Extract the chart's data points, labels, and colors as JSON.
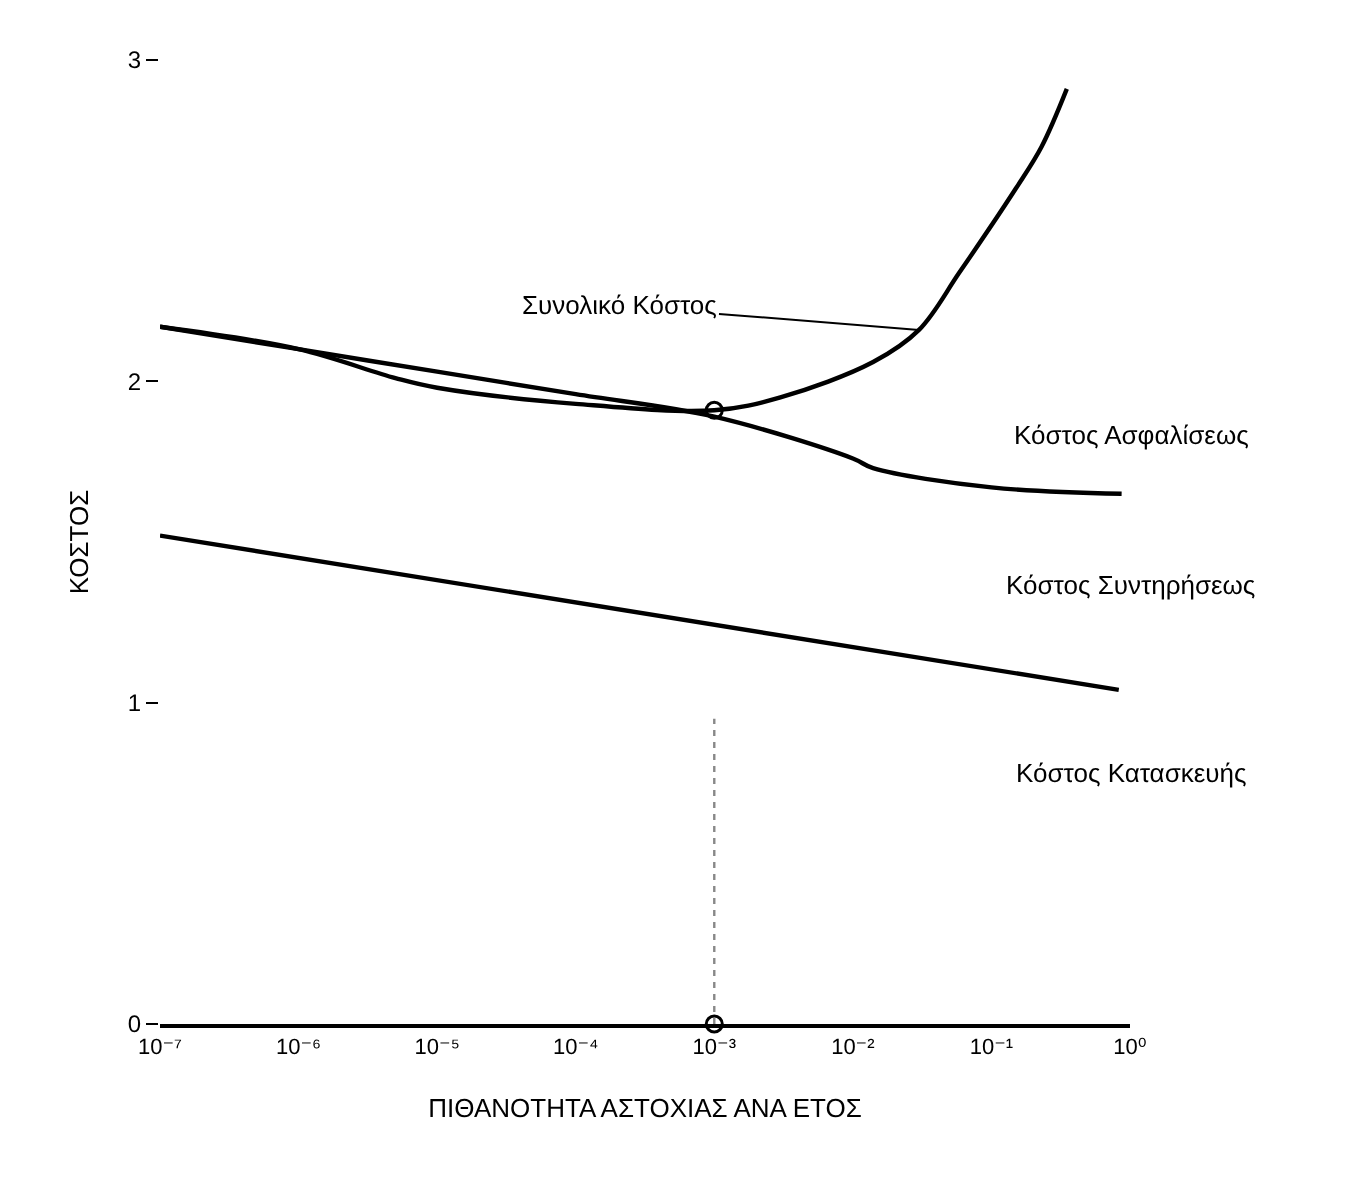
{
  "chart_data": {
    "type": "line",
    "xlabel": "ΠΙΘΑΝΟΤΗΤΑ ΑΣΤΟΧΙΑΣ ΑΝΑ ΕΤΟΣ",
    "ylabel": "ΚΟΣΤΟΣ",
    "log": "x",
    "xlim": [
      1e-07,
      1
    ],
    "ylim": [
      0,
      3
    ],
    "xticks": [
      {
        "value": 1e-07,
        "label": "10⁻⁷"
      },
      {
        "value": 1e-06,
        "label": "10⁻⁶"
      },
      {
        "value": 1e-05,
        "label": "10⁻⁵"
      },
      {
        "value": 0.0001,
        "label": "10⁻⁴"
      },
      {
        "value": 0.001,
        "label": "10⁻³"
      },
      {
        "value": 0.01,
        "label": "10⁻²"
      },
      {
        "value": 0.1,
        "label": "10⁻¹"
      },
      {
        "value": 1,
        "label": "10⁰"
      }
    ],
    "yticks": [
      0,
      1,
      2,
      3
    ],
    "grid": false,
    "marker": "none",
    "line_style": "solid",
    "series": [
      {
        "color": "#000000",
        "x": [
          1e-07,
          0.83
        ],
        "values": [
          1.52,
          1.04
        ]
      },
      {
        "color": "#000000",
        "x": [
          1e-07,
          1e-06,
          1e-05,
          0.0001,
          0.001,
          0.01,
          0.014,
          0.1,
          0.87
        ],
        "values": [
          2.17,
          2.1,
          2.03,
          1.96,
          1.89,
          1.76,
          1.73,
          1.67,
          1.65
        ]
      },
      {
        "color": "#000000",
        "x": [
          1e-07,
          1e-06,
          5e-06,
          1e-05,
          0.0001,
          0.001,
          0.003,
          0.014,
          0.03,
          0.059,
          0.15,
          0.23,
          0.35
        ],
        "values": [
          2.17,
          2.1,
          2.01,
          1.98,
          1.93,
          1.91,
          1.95,
          2.06,
          2.16,
          2.34,
          2.6,
          2.73,
          2.91
        ]
      },
      {
        "type": "scatter",
        "marker": "circle",
        "color": "#000000",
        "x": [
          0.001,
          0.001
        ],
        "values": [
          0,
          1.91
        ]
      }
    ],
    "ref_lines": [
      {
        "axis": "x",
        "value": 0.001,
        "line_style": "dotted",
        "color": "#888888"
      }
    ],
    "annotations": [
      {
        "text": "Συνολικό Κόστος",
        "x": 0.03,
        "y": 2.16
      },
      "Κόστος Ασφαλίσεως",
      "Κόστος Συντηρήσεως",
      "Κόστος Κατασκευής"
    ]
  }
}
